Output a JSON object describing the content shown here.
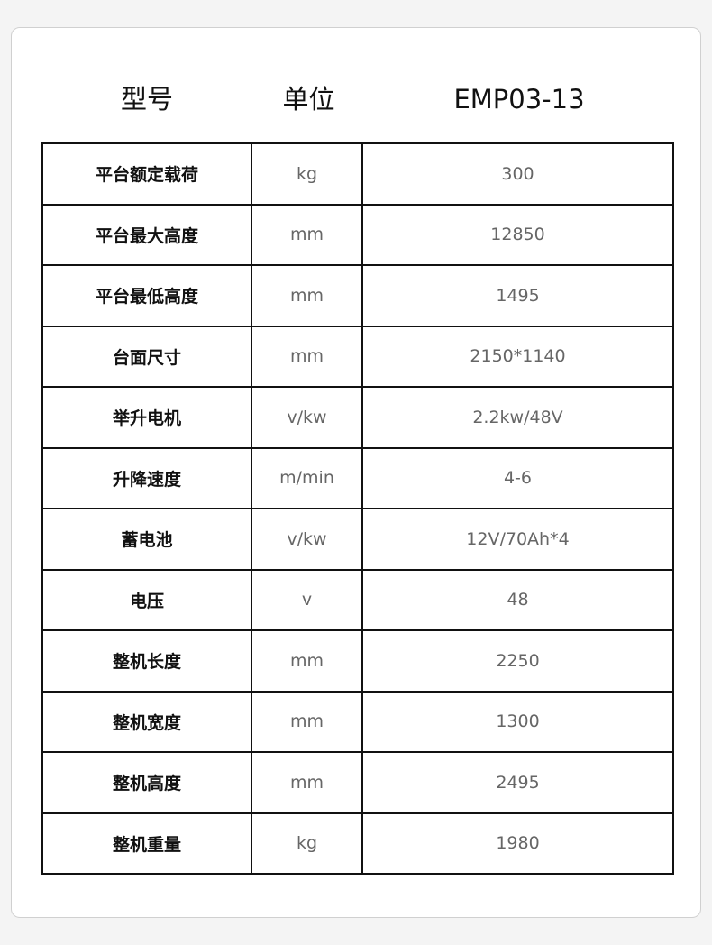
{
  "header": {
    "model_label": "型号",
    "unit_label": "单位",
    "model_value": "EMP03-13"
  },
  "rows": [
    {
      "name": "平台额定载荷",
      "unit": "kg",
      "value": "300"
    },
    {
      "name": "平台最大高度",
      "unit": "mm",
      "value": "12850"
    },
    {
      "name": "平台最低高度",
      "unit": "mm",
      "value": "1495"
    },
    {
      "name": "台面尺寸",
      "unit": "mm",
      "value": "2150*1140"
    },
    {
      "name": "举升电机",
      "unit": "v/kw",
      "value": "2.2kw/48V"
    },
    {
      "name": "升降速度",
      "unit": "m/min",
      "value": "4-6"
    },
    {
      "name": "蓄电池",
      "unit": "v/kw",
      "value": "12V/70Ah*4"
    },
    {
      "name": "电压",
      "unit": "v",
      "value": "48"
    },
    {
      "name": "整机长度",
      "unit": "mm",
      "value": "2250"
    },
    {
      "name": "整机宽度",
      "unit": "mm",
      "value": "1300"
    },
    {
      "name": "整机高度",
      "unit": "mm",
      "value": "2495"
    },
    {
      "name": "整机重量",
      "unit": "kg",
      "value": "1980"
    }
  ]
}
